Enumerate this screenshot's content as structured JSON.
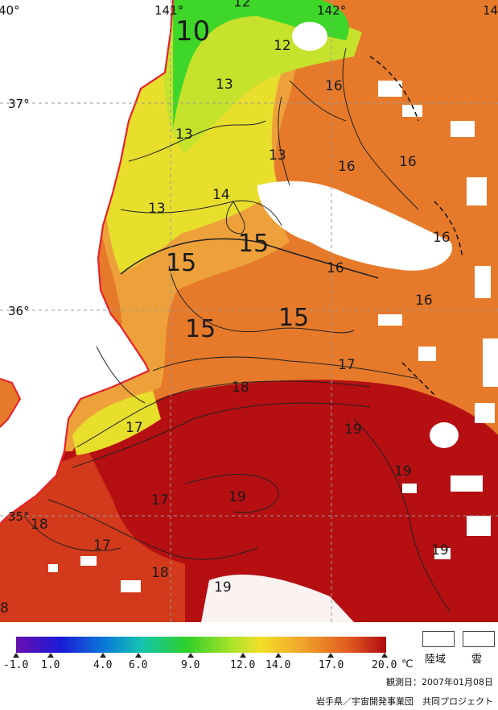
{
  "map": {
    "longitude_labels": [
      "40°",
      "141°",
      "142°",
      "14"
    ],
    "latitude_labels": [
      "37°",
      "36°",
      "35°"
    ],
    "contour_labels": [
      {
        "text": "10",
        "size": "large"
      },
      {
        "text": "12",
        "size": "normal"
      },
      {
        "text": "12",
        "size": "normal"
      },
      {
        "text": "13",
        "size": "normal"
      },
      {
        "text": "13",
        "size": "normal"
      },
      {
        "text": "13",
        "size": "normal"
      },
      {
        "text": "13",
        "size": "normal"
      },
      {
        "text": "14",
        "size": "normal"
      },
      {
        "text": "15",
        "size": "large"
      },
      {
        "text": "15",
        "size": "large"
      },
      {
        "text": "15",
        "size": "large"
      },
      {
        "text": "15",
        "size": "large"
      },
      {
        "text": "16",
        "size": "normal"
      },
      {
        "text": "16",
        "size": "normal"
      },
      {
        "text": "16",
        "size": "normal"
      },
      {
        "text": "16",
        "size": "normal"
      },
      {
        "text": "16",
        "size": "normal"
      },
      {
        "text": "16",
        "size": "normal"
      },
      {
        "text": "17",
        "size": "normal"
      },
      {
        "text": "17",
        "size": "normal"
      },
      {
        "text": "17",
        "size": "normal"
      },
      {
        "text": "17",
        "size": "normal"
      },
      {
        "text": "18",
        "size": "normal"
      },
      {
        "text": "18",
        "size": "normal"
      },
      {
        "text": "18",
        "size": "normal"
      },
      {
        "text": "8",
        "size": "normal"
      },
      {
        "text": "19",
        "size": "normal"
      },
      {
        "text": "19",
        "size": "normal"
      },
      {
        "text": "19",
        "size": "normal"
      },
      {
        "text": "19",
        "size": "normal"
      },
      {
        "text": "19",
        "size": "normal"
      }
    ],
    "colors": {
      "coastline": "#e8202a",
      "cold_green": "#3fd62a",
      "yellow_green": "#c6e22c",
      "yellow": "#e7df2b",
      "orange_light": "#eea13a",
      "orange": "#e67a2a",
      "red_orange": "#d8421f",
      "deep_red": "#b50f12",
      "cloud": "#ffffff",
      "grid": "#9a9a9a"
    }
  },
  "legend": {
    "ticks": [
      "-1.0",
      "1.0",
      "4.0",
      "6.0",
      "9.0",
      "12.0",
      "14.0",
      "17.0",
      "20.0"
    ],
    "unit": "℃",
    "gradient": [
      "#6a0fb0",
      "#1a1ad6",
      "#0a7ad8",
      "#14c4b0",
      "#2ed02a",
      "#a8e22a",
      "#f2e02a",
      "#f0a02a",
      "#e05a20",
      "#b00a10"
    ],
    "keys": [
      {
        "label": "陸域"
      },
      {
        "label": "雲"
      }
    ],
    "observation_date": "観測日：2007年01月08日",
    "credit": "岩手県／宇宙開発事業団　共同プロジェクト"
  }
}
